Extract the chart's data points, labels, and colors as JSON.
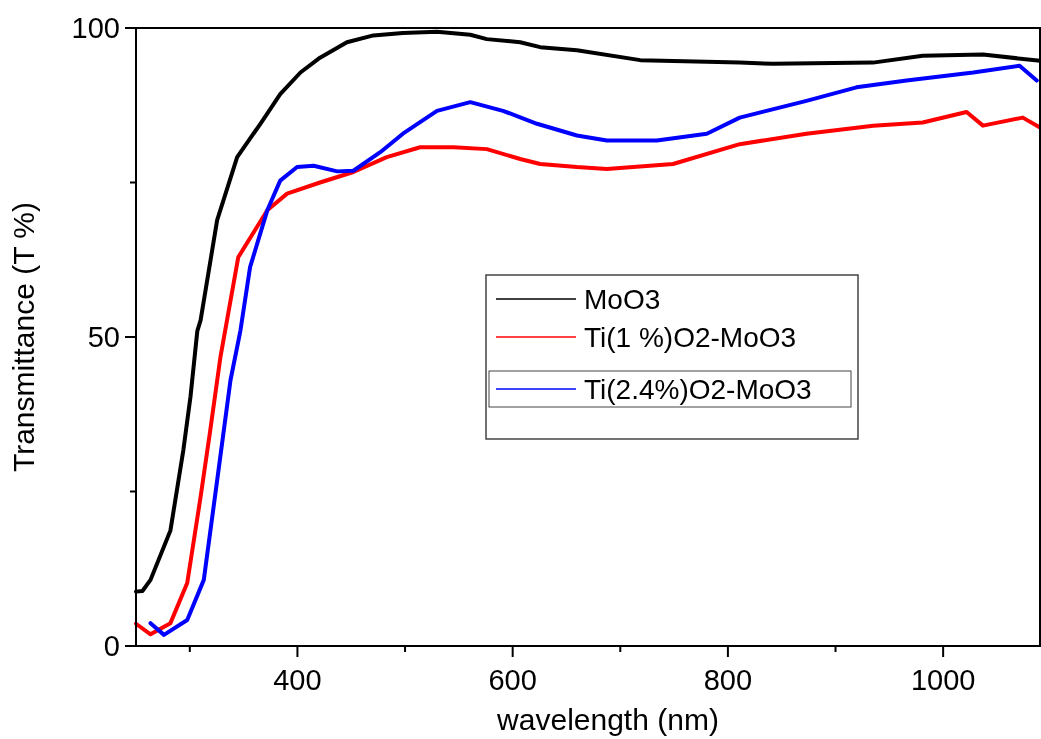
{
  "chart_data": {
    "type": "line",
    "xlabel": "wavelength (nm)",
    "ylabel": "Transmittance (T %)",
    "xlim": [
      250,
      1090
    ],
    "ylim": [
      0,
      100
    ],
    "xticks": [
      {
        "value": 300,
        "label": null
      },
      400,
      {
        "value": 500,
        "label": null
      },
      600,
      {
        "value": 700,
        "label": null
      },
      800,
      {
        "value": 900,
        "label": null
      },
      1000
    ],
    "yticks": [
      0,
      {
        "value": 25,
        "label": null
      },
      50,
      {
        "value": 75,
        "label": null
      },
      100
    ],
    "grid": false,
    "legend": "right",
    "series": [
      {
        "name": "MoO3",
        "color": "#000000",
        "x": [
          250,
          256,
          263.5,
          282,
          294,
          300.6,
          307,
          310,
          325.4,
          344,
          365.6,
          384,
          402.8,
          421,
          446,
          470.6,
          498,
          529.7,
          560.6,
          576,
          607,
          625.6,
          659.7,
          718.5,
          811,
          842,
          934.8,
          981,
          1037,
          1090
        ],
        "values": [
          8.8,
          8.9,
          10.7,
          18.7,
          31.7,
          40.3,
          51,
          52.7,
          68.9,
          79.1,
          84.5,
          89.3,
          92.8,
          95.2,
          97.7,
          98.8,
          99.2,
          99.4,
          98.9,
          98.2,
          97.7,
          96.9,
          96.4,
          94.8,
          94.4,
          94.2,
          94.4,
          95.5,
          95.7,
          94.7
        ]
      },
      {
        "name": "Ti(1 %)O2-MoO3",
        "color": "#ff0000",
        "x": [
          250,
          263.5,
          282,
          297.6,
          310,
          319,
          328.5,
          345,
          372,
          390.4,
          421,
          452,
          483,
          514,
          545,
          576,
          607,
          625.6,
          659.7,
          687.5,
          749,
          811,
          873,
          935,
          981,
          1021.8,
          1037,
          1074,
          1090
        ],
        "values": [
          3.6,
          1.9,
          3.7,
          10.2,
          24.1,
          34.9,
          46.8,
          62.9,
          70.5,
          73.2,
          75,
          76.7,
          79.1,
          80.7,
          80.7,
          80.4,
          78.8,
          78,
          77.5,
          77.2,
          78,
          81.2,
          82.9,
          84.2,
          84.7,
          86.4,
          84.2,
          85.5,
          83.9
        ]
      },
      {
        "name": "Ti(2.4%)O2-MoO3",
        "color": "#0000ff",
        "x": [
          263.5,
          276,
          297.6,
          313,
          325.4,
          337.8,
          347,
          356,
          372,
          384,
          399.7,
          415,
          437,
          452,
          477,
          498,
          529.7,
          560.6,
          591,
          622.6,
          659.7,
          687.5,
          734,
          780.4,
          811,
          873,
          919.5,
          966,
          1028,
          1071,
          1087
        ],
        "values": [
          3.7,
          1.8,
          4.2,
          10.7,
          26.8,
          43,
          51,
          61.3,
          70.5,
          75.3,
          77.5,
          77.7,
          76.8,
          76.9,
          79.9,
          82.9,
          86.6,
          88,
          86.6,
          84.5,
          82.6,
          81.8,
          81.8,
          82.9,
          85.5,
          88.2,
          90.4,
          91.5,
          92.8,
          93.9,
          91.5
        ]
      }
    ]
  }
}
